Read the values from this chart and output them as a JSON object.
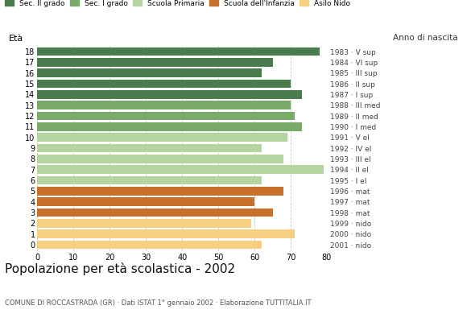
{
  "ages": [
    18,
    17,
    16,
    15,
    14,
    13,
    12,
    11,
    10,
    9,
    8,
    7,
    6,
    5,
    4,
    3,
    2,
    1,
    0
  ],
  "values": [
    78,
    65,
    62,
    70,
    73,
    70,
    71,
    73,
    69,
    62,
    68,
    79,
    62,
    68,
    60,
    65,
    59,
    71,
    62
  ],
  "anno_nascita": [
    "1983 · V sup",
    "1984 · VI sup",
    "1985 · III sup",
    "1986 · II sup",
    "1987 · I sup",
    "1988 · III med",
    "1989 · II med",
    "1990 · I med",
    "1991 · V el",
    "1992 · IV el",
    "1993 · III el",
    "1994 · II el",
    "1995 · I el",
    "1996 · mat",
    "1997 · mat",
    "1998 · mat",
    "1999 · nido",
    "2000 · nido",
    "2001 · nido"
  ],
  "colors": [
    "#4a7c4e",
    "#4a7c4e",
    "#4a7c4e",
    "#4a7c4e",
    "#4a7c4e",
    "#7aaa6a",
    "#7aaa6a",
    "#7aaa6a",
    "#b5d4a0",
    "#b5d4a0",
    "#b5d4a0",
    "#b5d4a0",
    "#b5d4a0",
    "#c8702a",
    "#c8702a",
    "#c8702a",
    "#f5d080",
    "#f5d080",
    "#f5d080"
  ],
  "legend_labels": [
    "Sec. II grado",
    "Sec. I grado",
    "Scuola Primaria",
    "Scuola dell'Infanzia",
    "Asilo Nido"
  ],
  "legend_colors": [
    "#4a7c4e",
    "#7aaa6a",
    "#b5d4a0",
    "#c8702a",
    "#f5d080"
  ],
  "title": "Popolazione per età scolastica - 2002",
  "subtitle": "COMUNE DI ROCCASTRADA (GR) · Dati ISTAT 1° gennaio 2002 · Elaborazione TUTTITALIA.IT",
  "ylabel": "Età",
  "anno_label": "Anno di nascita",
  "xlim": [
    0,
    80
  ],
  "xticks": [
    0,
    10,
    20,
    30,
    40,
    50,
    60,
    70,
    80
  ],
  "background_color": "#ffffff",
  "bar_height": 0.82,
  "dpi": 100,
  "figsize": [
    5.8,
    4.0
  ]
}
